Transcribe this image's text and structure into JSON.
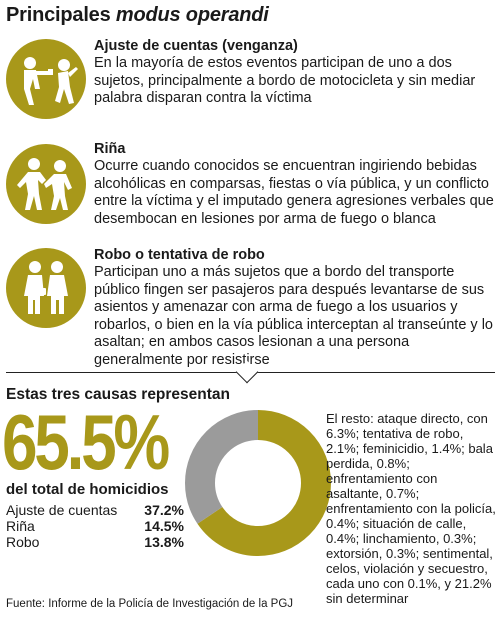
{
  "header": {
    "title_plain": "Principales ",
    "title_italic": "modus operandi"
  },
  "items": [
    {
      "icon": "shooting-icon",
      "title": "Ajuste de cuentas (venganza)",
      "body": "En la mayoría de estos eventos participan de uno a dos sujetos, principalmente a bordo de motocicleta y sin mediar palabra disparan contra la víctima"
    },
    {
      "icon": "fight-icon",
      "title": "Riña",
      "body": "Ocurre cuando conocidos se encuentran ingiriendo bebidas alcohólicas en comparsas, fiestas o vía pública, y un conflicto entre la víctima y el imputado genera agresiones verbales que desembocan en lesiones por arma de fuego o blanca"
    },
    {
      "icon": "robbery-icon",
      "title": "Robo o tentativa de robo",
      "body": "Participan uno a más sujetos que a bordo del transporte público fingen ser pasajeros para después levantarse de sus asientos y amenazar con arma de fuego a los usuarios y robarlos, o bien en la vía pública interceptan al transeúnte y lo asaltan; en ambos casos lesionan a una persona generalmente por resistirse"
    }
  ],
  "summary": {
    "heading": "Estas tres causas representan",
    "big_value": "65.5%",
    "big_label": "del total de homicidios",
    "breakdown": [
      {
        "label": "Ajuste de cuentas",
        "value": "37.2%"
      },
      {
        "label": "Riña",
        "value": "14.5%"
      },
      {
        "label": "Robo",
        "value": "13.8%"
      }
    ],
    "rest_text": "El resto: ataque directo, con 6.3%; tentativa de robo, 2.1%; feminicidio, 1.4%; bala perdida, 0.8%; enfrentamiento con asaltante, 0.7%; enfrentamiento con la policía, 0.4%; situación de calle, 0.4%; linchamiento, 0.3%; extorsión, 0.3%; sentimental, celos, violación y secuestro, cada uno con 0.1%, y 21.2% sin determinar"
  },
  "source": "Fuente: Informe de la Policía de Investigación de la PGJ",
  "colors": {
    "accent": "#a8981a",
    "rest": "#9b9b9b"
  },
  "chart_data": {
    "type": "pie",
    "style": "donut",
    "categories": [
      "Ajuste de cuentas, riña y robo",
      "El resto"
    ],
    "values": [
      65.5,
      34.5
    ],
    "colors": [
      "#a8981a",
      "#9b9b9b"
    ]
  }
}
